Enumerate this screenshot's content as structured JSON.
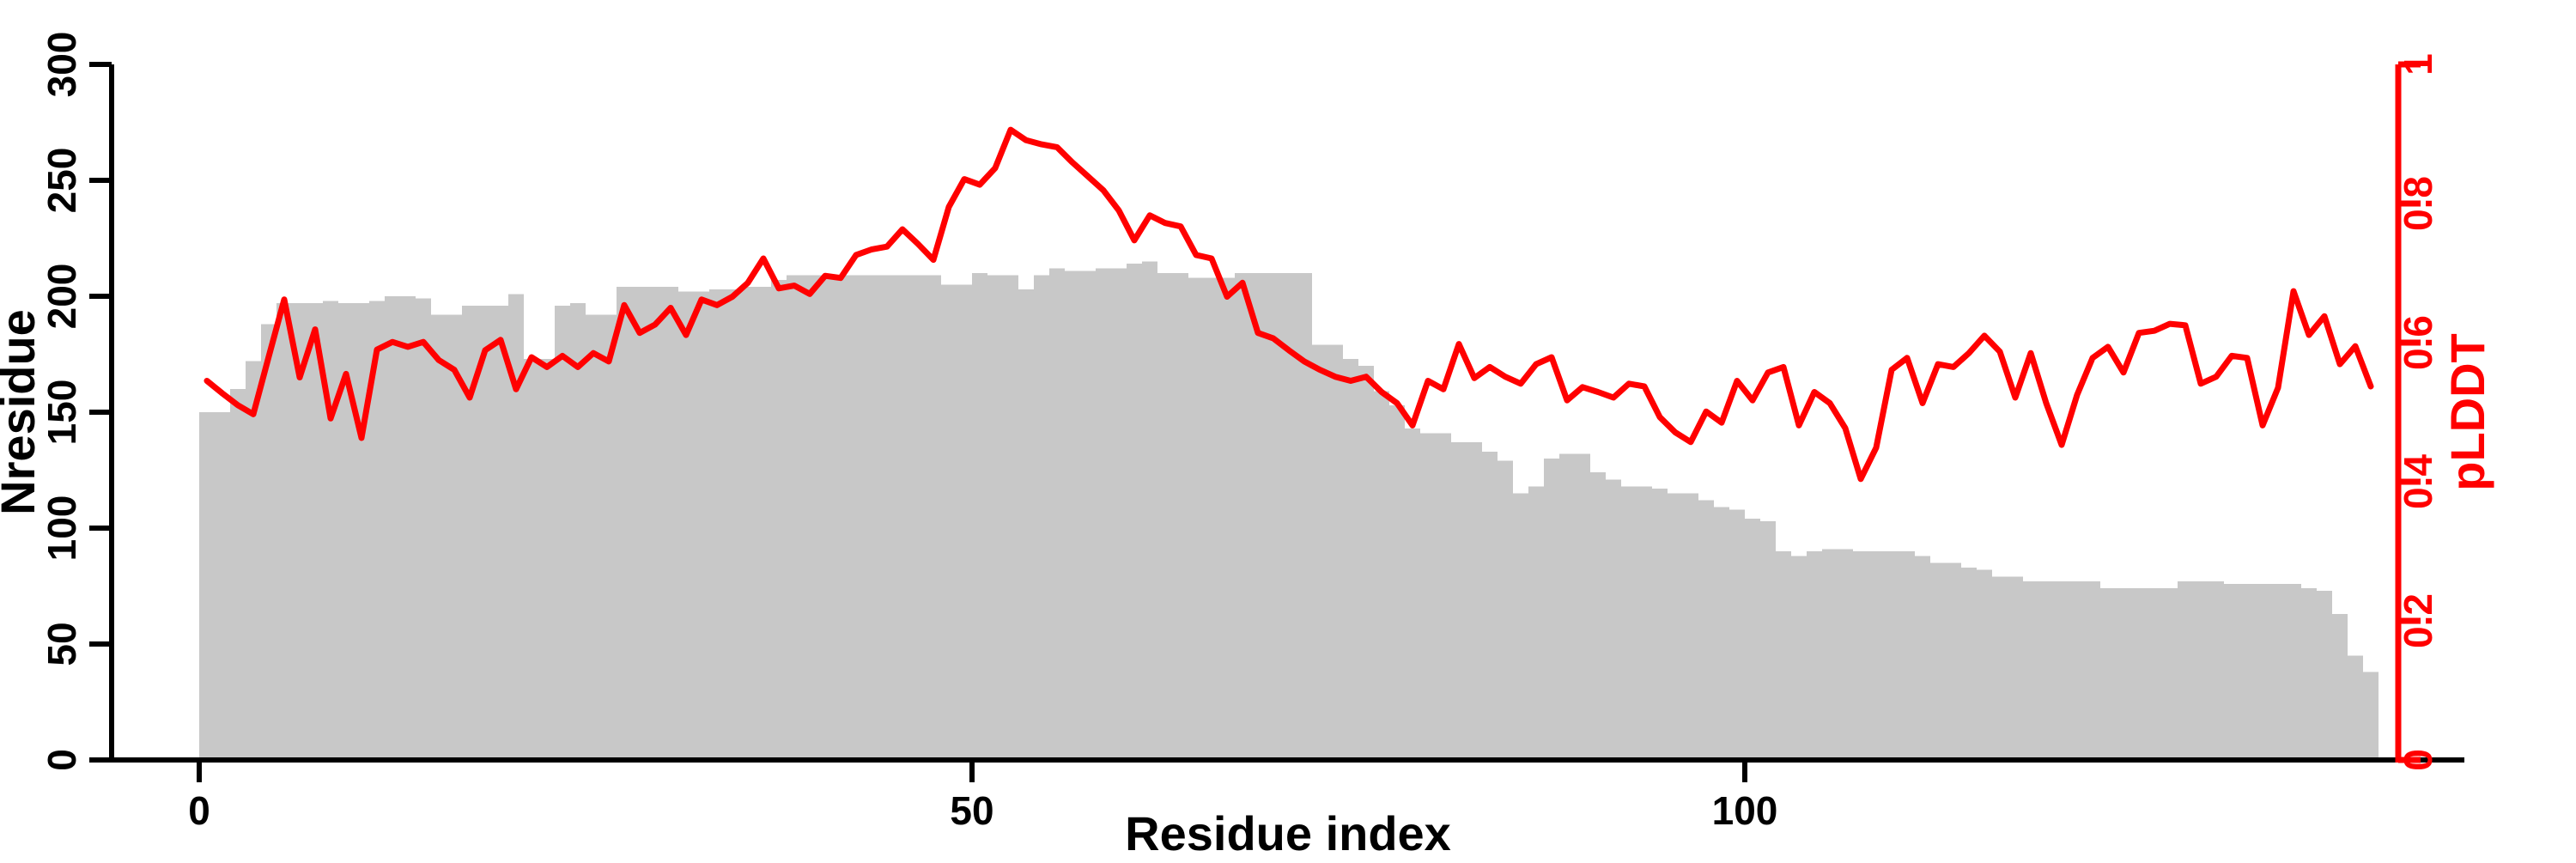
{
  "chart_data": {
    "type": "bar+line",
    "title": "",
    "background": "#ffffff",
    "grid": false,
    "legend": "none",
    "x": {
      "label": "Residue index",
      "ticks": [
        0,
        50,
        100
      ],
      "start": 0,
      "step": 1,
      "count": 141
    },
    "y_left": {
      "label": "Nresidue",
      "ticks": [
        0,
        50,
        100,
        150,
        200,
        250,
        300
      ],
      "range": [
        0,
        300
      ],
      "color": "#000000"
    },
    "y_right": {
      "label": "pLDDT",
      "ticks": [
        0,
        0.2,
        0.4,
        0.6,
        0.8,
        1
      ],
      "tick_labels": [
        "0",
        "0.2",
        "0.4",
        "0.6",
        "0.8",
        "1"
      ],
      "range": [
        0,
        1
      ],
      "color": "#ff0000"
    },
    "series": [
      {
        "name": "Nresidue",
        "type": "bar",
        "axis": "left",
        "color": "#c8c8c8",
        "values": [
          150,
          150,
          160,
          172,
          188,
          197,
          197,
          197,
          198,
          197,
          197,
          198,
          200,
          200,
          199,
          192,
          192,
          196,
          196,
          196,
          201,
          173,
          173,
          196,
          197,
          192,
          192,
          204,
          204,
          204,
          204,
          202,
          202,
          203,
          203,
          204,
          204,
          207,
          209,
          209,
          209,
          209,
          209,
          209,
          209,
          209,
          209,
          209,
          205,
          205,
          210,
          209,
          209,
          203,
          209,
          212,
          211,
          211,
          212,
          212,
          214,
          215,
          210,
          210,
          208,
          208,
          208,
          210,
          210,
          210,
          210,
          210,
          179,
          179,
          173,
          170,
          159,
          153,
          143,
          141,
          141,
          137,
          137,
          133,
          129,
          115,
          118,
          130,
          132,
          132,
          124,
          121,
          118,
          118,
          117,
          115,
          115,
          112,
          109,
          108,
          104,
          103,
          90,
          88,
          90,
          91,
          91,
          90,
          90,
          90,
          90,
          88,
          85,
          85,
          83,
          82,
          79,
          79,
          77,
          77,
          77,
          77,
          77,
          74,
          74,
          74,
          74,
          74,
          77,
          77,
          77,
          76,
          76,
          76,
          76,
          76,
          74,
          73,
          63,
          45,
          38
        ]
      },
      {
        "name": "pLDDT",
        "type": "line",
        "axis": "right",
        "color": "#ff0000",
        "values": [
          0.545,
          0.527,
          0.51,
          0.497,
          0.58,
          0.662,
          0.55,
          0.619,
          0.491,
          0.555,
          0.463,
          0.59,
          0.601,
          0.594,
          0.601,
          0.575,
          0.561,
          0.521,
          0.589,
          0.604,
          0.533,
          0.579,
          0.565,
          0.581,
          0.565,
          0.585,
          0.573,
          0.654,
          0.614,
          0.626,
          0.65,
          0.611,
          0.662,
          0.654,
          0.666,
          0.686,
          0.721,
          0.678,
          0.682,
          0.67,
          0.696,
          0.693,
          0.726,
          0.734,
          0.738,
          0.763,
          0.742,
          0.719,
          0.795,
          0.835,
          0.827,
          0.851,
          0.906,
          0.891,
          0.885,
          0.881,
          0.859,
          0.839,
          0.819,
          0.79,
          0.747,
          0.783,
          0.772,
          0.767,
          0.726,
          0.721,
          0.666,
          0.686,
          0.614,
          0.606,
          0.589,
          0.573,
          0.561,
          0.551,
          0.545,
          0.551,
          0.529,
          0.513,
          0.481,
          0.545,
          0.533,
          0.598,
          0.549,
          0.565,
          0.551,
          0.541,
          0.569,
          0.579,
          0.517,
          0.536,
          0.529,
          0.521,
          0.541,
          0.537,
          0.493,
          0.471,
          0.457,
          0.501,
          0.485,
          0.545,
          0.517,
          0.557,
          0.565,
          0.481,
          0.529,
          0.513,
          0.477,
          0.404,
          0.449,
          0.561,
          0.578,
          0.513,
          0.569,
          0.565,
          0.585,
          0.61,
          0.587,
          0.521,
          0.585,
          0.513,
          0.453,
          0.525,
          0.578,
          0.594,
          0.557,
          0.614,
          0.617,
          0.627,
          0.625,
          0.541,
          0.551,
          0.581,
          0.578,
          0.481,
          0.535,
          0.674,
          0.611,
          0.638,
          0.569,
          0.595,
          0.537
        ]
      }
    ]
  }
}
